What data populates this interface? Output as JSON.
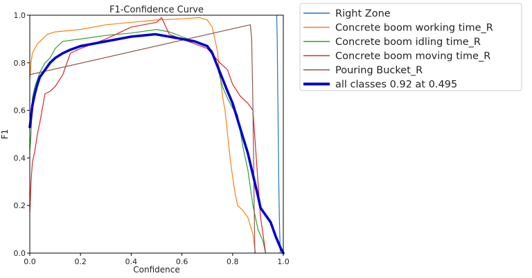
{
  "chart_data": {
    "type": "line",
    "title": "F1-Confidence Curve",
    "xlabel": "Confidence",
    "ylabel": "F1",
    "xlim": [
      0,
      1
    ],
    "ylim": [
      0,
      1
    ],
    "xticks": [
      "0.0",
      "0.2",
      "0.4",
      "0.6",
      "0.8",
      "1.0"
    ],
    "yticks": [
      "0.0",
      "0.2",
      "0.4",
      "0.6",
      "0.8",
      "1.0"
    ],
    "grid": false,
    "legend_position": "outside-right",
    "series": [
      {
        "name": "Right Zone",
        "color": "#1f77b4",
        "width": 1.2,
        "points": [
          [
            0.974,
            1.0
          ],
          [
            0.976,
            0.9
          ],
          [
            0.978,
            0.7
          ],
          [
            0.98,
            0.5
          ],
          [
            0.982,
            0.3
          ],
          [
            0.985,
            0.12
          ],
          [
            0.988,
            0.0
          ]
        ]
      },
      {
        "name": "Concrete boom working time_R",
        "color": "#ff7f0e",
        "width": 1.2,
        "points": [
          [
            0.0,
            0.73
          ],
          [
            0.005,
            0.8
          ],
          [
            0.01,
            0.84
          ],
          [
            0.02,
            0.86
          ],
          [
            0.03,
            0.88
          ],
          [
            0.05,
            0.9
          ],
          [
            0.07,
            0.92
          ],
          [
            0.1,
            0.93
          ],
          [
            0.2,
            0.94
          ],
          [
            0.3,
            0.96
          ],
          [
            0.4,
            0.97
          ],
          [
            0.5,
            0.98
          ],
          [
            0.6,
            0.985
          ],
          [
            0.67,
            0.99
          ],
          [
            0.7,
            0.98
          ],
          [
            0.72,
            0.95
          ],
          [
            0.74,
            0.85
          ],
          [
            0.75,
            0.75
          ],
          [
            0.76,
            0.66
          ],
          [
            0.77,
            0.6
          ],
          [
            0.78,
            0.5
          ],
          [
            0.79,
            0.4
          ],
          [
            0.8,
            0.32
          ],
          [
            0.81,
            0.25
          ],
          [
            0.82,
            0.2
          ],
          [
            0.84,
            0.18
          ],
          [
            0.86,
            0.15
          ],
          [
            0.88,
            0.08
          ],
          [
            0.89,
            0.0
          ]
        ]
      },
      {
        "name": "Concrete boom idling time_R",
        "color": "#2ca02c",
        "width": 1.2,
        "points": [
          [
            0.0,
            0.43
          ],
          [
            0.005,
            0.5
          ],
          [
            0.01,
            0.65
          ],
          [
            0.02,
            0.7
          ],
          [
            0.04,
            0.76
          ],
          [
            0.06,
            0.8
          ],
          [
            0.08,
            0.82
          ],
          [
            0.1,
            0.86
          ],
          [
            0.13,
            0.89
          ],
          [
            0.2,
            0.9
          ],
          [
            0.3,
            0.915
          ],
          [
            0.4,
            0.925
          ],
          [
            0.5,
            0.94
          ],
          [
            0.55,
            0.93
          ],
          [
            0.6,
            0.91
          ],
          [
            0.7,
            0.87
          ],
          [
            0.72,
            0.85
          ],
          [
            0.74,
            0.78
          ],
          [
            0.76,
            0.7
          ],
          [
            0.78,
            0.65
          ],
          [
            0.8,
            0.61
          ],
          [
            0.82,
            0.58
          ],
          [
            0.84,
            0.45
          ],
          [
            0.86,
            0.35
          ],
          [
            0.88,
            0.2
          ],
          [
            0.9,
            0.1
          ],
          [
            0.92,
            0.05
          ],
          [
            0.93,
            0.0
          ]
        ]
      },
      {
        "name": "Concrete boom moving time_R",
        "color": "#d62728",
        "width": 1.2,
        "points": [
          [
            0.0,
            0.17
          ],
          [
            0.005,
            0.3
          ],
          [
            0.01,
            0.38
          ],
          [
            0.02,
            0.43
          ],
          [
            0.03,
            0.5
          ],
          [
            0.04,
            0.55
          ],
          [
            0.06,
            0.67
          ],
          [
            0.08,
            0.68
          ],
          [
            0.1,
            0.7
          ],
          [
            0.13,
            0.75
          ],
          [
            0.16,
            0.84
          ],
          [
            0.2,
            0.86
          ],
          [
            0.3,
            0.9
          ],
          [
            0.4,
            0.95
          ],
          [
            0.5,
            0.97
          ],
          [
            0.52,
            0.99
          ],
          [
            0.55,
            0.92
          ],
          [
            0.6,
            0.9
          ],
          [
            0.65,
            0.88
          ],
          [
            0.7,
            0.86
          ],
          [
            0.75,
            0.8
          ],
          [
            0.78,
            0.77
          ],
          [
            0.8,
            0.71
          ],
          [
            0.83,
            0.66
          ],
          [
            0.86,
            0.63
          ],
          [
            0.88,
            0.6
          ],
          [
            0.9,
            0.3
          ],
          [
            0.91,
            0.15
          ],
          [
            0.92,
            0.08
          ],
          [
            0.93,
            0.0
          ]
        ]
      },
      {
        "name": "Pouring Bucket_R",
        "color": "#8c564b",
        "width": 1.2,
        "points": [
          [
            0.0,
            0.75
          ],
          [
            0.87,
            0.96
          ],
          [
            0.875,
            0.9
          ],
          [
            0.88,
            0.62
          ],
          [
            0.885,
            0.2
          ],
          [
            0.888,
            0.0
          ]
        ]
      },
      {
        "name": "all classes 0.92 at 0.495",
        "color": "#0000cd",
        "width": 3.6,
        "points": [
          [
            0.0,
            0.53
          ],
          [
            0.005,
            0.57
          ],
          [
            0.01,
            0.62
          ],
          [
            0.02,
            0.67
          ],
          [
            0.03,
            0.71
          ],
          [
            0.04,
            0.74
          ],
          [
            0.06,
            0.77
          ],
          [
            0.08,
            0.8
          ],
          [
            0.1,
            0.82
          ],
          [
            0.13,
            0.84
          ],
          [
            0.16,
            0.855
          ],
          [
            0.2,
            0.87
          ],
          [
            0.3,
            0.89
          ],
          [
            0.4,
            0.91
          ],
          [
            0.45,
            0.915
          ],
          [
            0.495,
            0.92
          ],
          [
            0.55,
            0.91
          ],
          [
            0.6,
            0.9
          ],
          [
            0.65,
            0.89
          ],
          [
            0.7,
            0.87
          ],
          [
            0.72,
            0.84
          ],
          [
            0.75,
            0.76
          ],
          [
            0.78,
            0.68
          ],
          [
            0.8,
            0.63
          ],
          [
            0.82,
            0.56
          ],
          [
            0.84,
            0.49
          ],
          [
            0.86,
            0.42
          ],
          [
            0.88,
            0.33
          ],
          [
            0.9,
            0.24
          ],
          [
            0.91,
            0.19
          ],
          [
            0.93,
            0.16
          ],
          [
            0.95,
            0.13
          ],
          [
            0.97,
            0.07
          ],
          [
            0.99,
            0.02
          ],
          [
            1.0,
            0.0
          ]
        ]
      }
    ]
  }
}
